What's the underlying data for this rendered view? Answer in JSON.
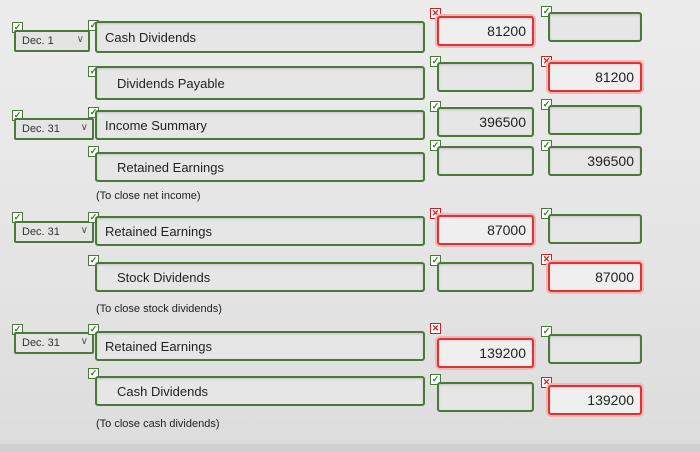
{
  "entries": [
    {
      "date": "Dec. 1",
      "debit_account": "Cash Dividends",
      "credit_account": "Dividends Payable",
      "debit_amount": "81200",
      "credit_amount": "81200",
      "note": ""
    },
    {
      "date": "Dec. 31",
      "debit_account": "Income Summary",
      "credit_account": "Retained Earnings",
      "debit_amount": "396500",
      "credit_amount": "396500",
      "note": "(To close net income)"
    },
    {
      "date": "Dec. 31",
      "debit_account": "Retained Earnings",
      "credit_account": "Stock Dividends",
      "debit_amount": "87000",
      "credit_amount": "87000",
      "note": "(To close stock dividends)"
    },
    {
      "date": "Dec. 31",
      "debit_account": "Retained Earnings",
      "credit_account": "Cash Dividends",
      "debit_amount": "139200",
      "credit_amount": "139200",
      "note": "(To close cash dividends)"
    }
  ],
  "icons": {
    "correct": "check-icon",
    "incorrect": "x-icon",
    "dropdown": "chevron-down-icon"
  },
  "colors": {
    "correct_border": "#4a7a3a",
    "incorrect_border": "#d33"
  }
}
